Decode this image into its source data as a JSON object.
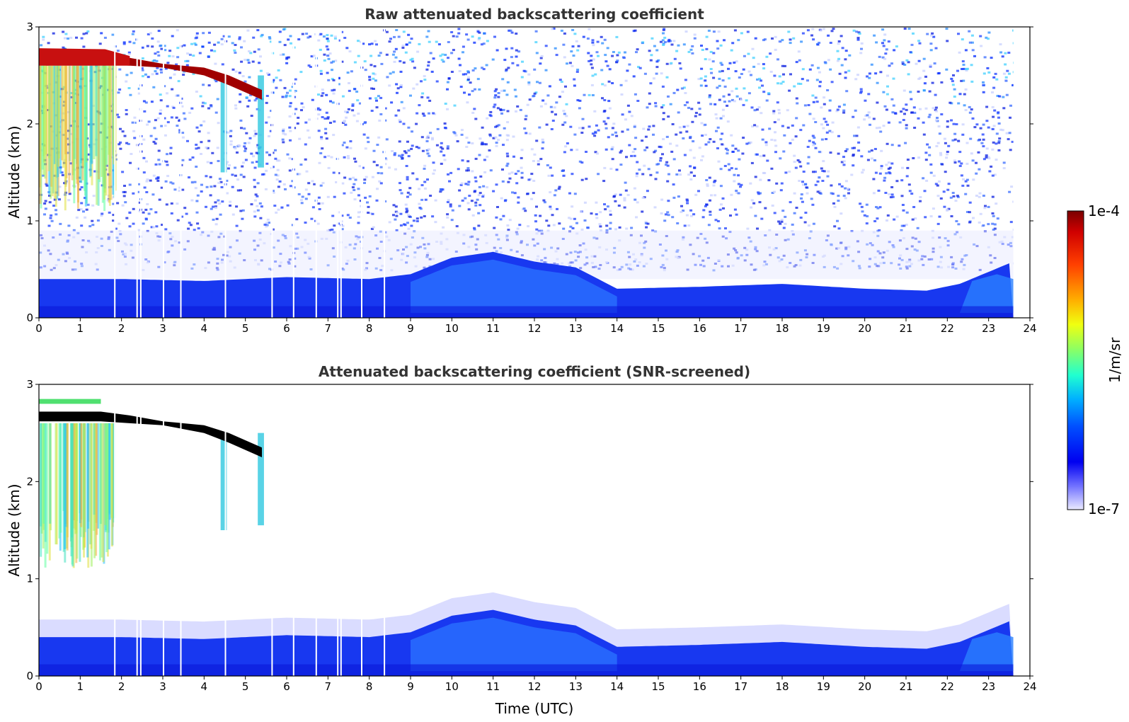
{
  "chart_data": [
    {
      "type": "heatmap",
      "panel": "top",
      "title": "Raw attenuated backscattering coefficient",
      "xlabel": "",
      "ylabel": "Altitude (km)",
      "xlim": [
        0,
        24
      ],
      "ylim": [
        0,
        3
      ],
      "x_ticks": [
        "0",
        "1",
        "2",
        "3",
        "4",
        "5",
        "6",
        "7",
        "8",
        "9",
        "10",
        "11",
        "12",
        "13",
        "14",
        "15",
        "16",
        "17",
        "18",
        "19",
        "20",
        "21",
        "22",
        "23",
        "24"
      ],
      "y_ticks": [
        "0",
        "1",
        "2",
        "3"
      ],
      "data_end_time": 23.6,
      "boundary_layer_top_km": [
        [
          0,
          0.4
        ],
        [
          2,
          0.4
        ],
        [
          4,
          0.38
        ],
        [
          6,
          0.42
        ],
        [
          8,
          0.4
        ],
        [
          9,
          0.45
        ],
        [
          10,
          0.62
        ],
        [
          11,
          0.68
        ],
        [
          12,
          0.58
        ],
        [
          13,
          0.52
        ],
        [
          14,
          0.3
        ],
        [
          16,
          0.32
        ],
        [
          18,
          0.35
        ],
        [
          20,
          0.3
        ],
        [
          21.5,
          0.28
        ],
        [
          22.3,
          0.35
        ],
        [
          23.6,
          0.58
        ]
      ],
      "cloud_layer": {
        "base_km": 2.6,
        "top_km": 2.75,
        "from_time": 0,
        "to_time": 5.4
      },
      "gaps_time": [
        1.82,
        2.36,
        2.45,
        3.0,
        3.42,
        4.5,
        5.63,
        6.15,
        6.7,
        7.22,
        7.3,
        7.8,
        8.35
      ]
    },
    {
      "type": "heatmap",
      "panel": "bottom",
      "title": "Attenuated backscattering coefficient (SNR-screened)",
      "xlabel": "Time (UTC)",
      "ylabel": "Altitude (km)",
      "xlim": [
        0,
        24
      ],
      "ylim": [
        0,
        3
      ],
      "x_ticks": [
        "0",
        "1",
        "2",
        "3",
        "4",
        "5",
        "6",
        "7",
        "8",
        "9",
        "10",
        "11",
        "12",
        "13",
        "14",
        "15",
        "16",
        "17",
        "18",
        "19",
        "20",
        "21",
        "22",
        "23",
        "24"
      ],
      "y_ticks": [
        "0",
        "1",
        "2",
        "3"
      ],
      "data_end_time": 23.6,
      "boundary_layer_top_km": [
        [
          0,
          0.4
        ],
        [
          2,
          0.4
        ],
        [
          4,
          0.38
        ],
        [
          6,
          0.42
        ],
        [
          8,
          0.4
        ],
        [
          9,
          0.45
        ],
        [
          10,
          0.62
        ],
        [
          11,
          0.68
        ],
        [
          12,
          0.58
        ],
        [
          13,
          0.52
        ],
        [
          14,
          0.3
        ],
        [
          16,
          0.32
        ],
        [
          18,
          0.35
        ],
        [
          20,
          0.3
        ],
        [
          21.5,
          0.28
        ],
        [
          22.3,
          0.35
        ],
        [
          23.6,
          0.58
        ]
      ],
      "cloud_layer": {
        "base_km": 2.6,
        "top_km": 2.75,
        "from_time": 0,
        "to_time": 5.4
      },
      "gaps_time": [
        1.82,
        2.36,
        2.45,
        3.0,
        3.42,
        4.5,
        5.63,
        6.15,
        6.7,
        7.22,
        7.3,
        7.8,
        8.35
      ]
    }
  ],
  "colorbar": {
    "label": "1/m/sr",
    "max_label": "1e-4",
    "min_label": "1e-7",
    "scale": "log",
    "colors": [
      "#800000",
      "#c00000",
      "#ff2000",
      "#ff7000",
      "#ffc000",
      "#e8ff20",
      "#90ff60",
      "#40ffb0",
      "#00e0ff",
      "#0090ff",
      "#0040ff",
      "#0000ff",
      "#6060ff",
      "#a0a0ff",
      "#e0e0ff"
    ]
  }
}
